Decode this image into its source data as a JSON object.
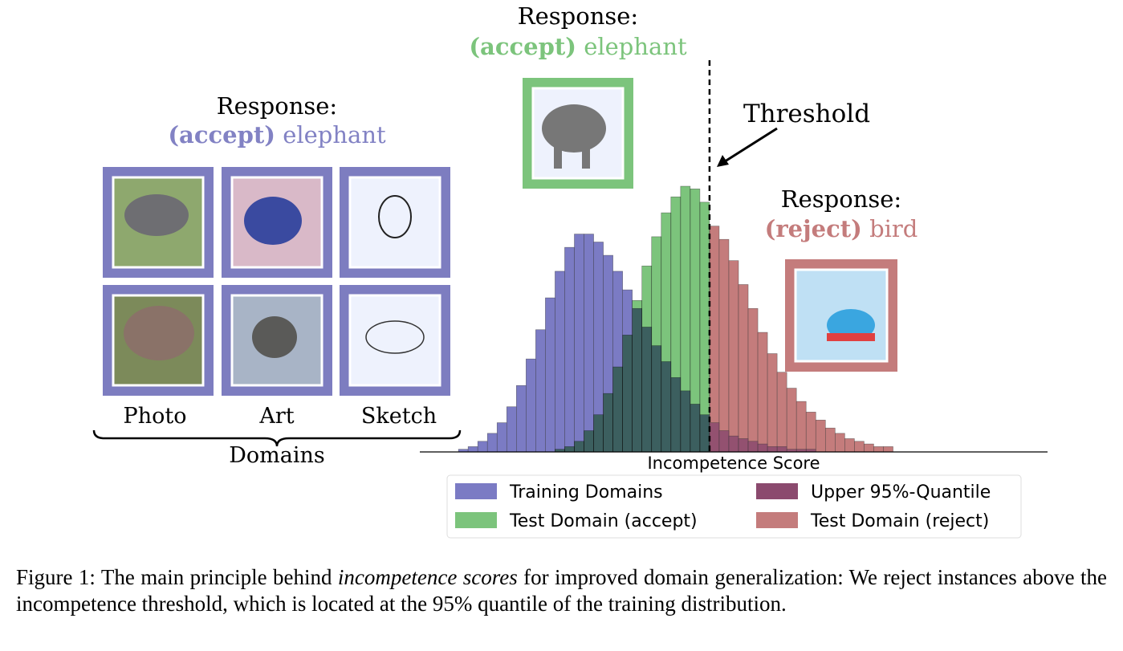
{
  "responses": [
    {
      "heading": "Response:",
      "verdict": "(accept)",
      "label": "elephant"
    },
    {
      "heading": "Response:",
      "verdict": "(accept)",
      "label": "elephant"
    },
    {
      "heading": "Response:",
      "verdict": "(reject)",
      "label": "bird"
    }
  ],
  "domains": {
    "items": [
      "Photo",
      "Art",
      "Sketch"
    ],
    "title": "Domains"
  },
  "chart_data": {
    "type": "histogram",
    "xlabel": "Incompetence Score",
    "bins": [
      0,
      1,
      2,
      3,
      4,
      5,
      6,
      7,
      8,
      9,
      10,
      11,
      12,
      13,
      14,
      15,
      16,
      17,
      18,
      19,
      20,
      21,
      22,
      23,
      24,
      25,
      26,
      27,
      28,
      29,
      30,
      31,
      32,
      33,
      34,
      35,
      36,
      37,
      38,
      39,
      40,
      41,
      42,
      43,
      44,
      45
    ],
    "xlim": [
      -4,
      61
    ],
    "ylim": [
      0,
      100
    ],
    "threshold": 26,
    "threshold_label": "Threshold",
    "quantile": {
      "name": "Upper 95%-Quantile",
      "color": "#8b4a6e"
    },
    "series": [
      {
        "name": "Training Domains",
        "color": "#7b7bc4",
        "values": [
          1,
          2,
          4,
          7,
          11,
          17,
          25,
          35,
          46,
          58,
          68,
          77,
          82,
          82,
          79,
          74,
          68,
          61,
          54,
          47,
          40,
          34,
          28,
          23,
          18,
          14,
          11,
          8,
          6,
          5,
          4,
          3,
          2,
          2,
          1,
          1,
          1,
          0,
          0,
          0,
          0,
          0,
          0,
          0,
          0
        ]
      },
      {
        "name": "Test Domain (accept)",
        "color": "#7cc47c",
        "values": [
          null,
          null,
          null,
          null,
          null,
          null,
          null,
          null,
          null,
          null,
          1,
          2,
          4,
          8,
          14,
          22,
          32,
          44,
          57,
          70,
          81,
          90,
          96,
          100,
          99,
          94,
          null,
          null,
          null,
          null,
          null,
          null,
          null,
          null,
          null,
          null,
          null,
          null,
          null,
          null,
          null,
          null,
          null,
          null,
          null
        ]
      },
      {
        "name": "Test Domain (reject)",
        "color": "#c47c7c",
        "values": [
          null,
          null,
          null,
          null,
          null,
          null,
          null,
          null,
          null,
          null,
          null,
          null,
          null,
          null,
          null,
          null,
          null,
          null,
          null,
          null,
          null,
          null,
          null,
          null,
          null,
          null,
          85,
          80,
          72,
          63,
          54,
          45,
          37,
          30,
          24,
          19,
          15,
          12,
          9,
          7,
          5,
          4,
          3,
          2,
          2
        ]
      }
    ]
  },
  "caption": {
    "lead": "Figure 1: The main principle behind",
    "emphasis": "incompetence scores",
    "rest": "for improved domain generalization: We reject instances above the incompetence threshold, which is located at the 95% quantile of the training distribution."
  }
}
